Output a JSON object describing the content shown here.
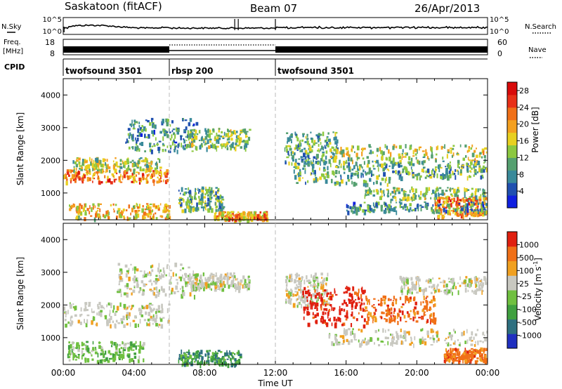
{
  "header": {
    "station": "Saskatoon (fitACF)",
    "beam": "Beam 07",
    "date": "26/Apr/2013"
  },
  "side_labels": {
    "nsky": "N.Sky",
    "freq_line1": "Freq.",
    "freq_line2": "[MHz]",
    "cpid": "CPID",
    "nsearch": "N.Search",
    "nave": "Nave"
  },
  "noise_panel": {
    "left_ticks": [
      "10^5",
      "10^0"
    ],
    "right_ticks": [
      "10^5",
      "10^0"
    ]
  },
  "freq_panel": {
    "left_ticks": [
      "18",
      "8"
    ],
    "right_ticks": [
      "60",
      "0"
    ],
    "freq_mhz": 11.0,
    "nave_dotted_interval": [
      "06:00",
      "12:00"
    ]
  },
  "cpid_segments": [
    {
      "label": "twofsound 3501",
      "start_hour": 0,
      "end_hour": 6
    },
    {
      "label": "rbsp 200",
      "start_hour": 6,
      "end_hour": 12
    },
    {
      "label": "twofsound 3501",
      "start_hour": 12,
      "end_hour": 24
    }
  ],
  "x_axis": {
    "label": "Time UT",
    "ticks": [
      "00:00",
      "04:00",
      "08:00",
      "12:00",
      "16:00",
      "20:00",
      "00:00"
    ]
  },
  "chart_data": [
    {
      "type": "heatmap",
      "name": "power",
      "ylabel": "Slant Range [km]",
      "y_ticks": [
        "1000",
        "2000",
        "3000",
        "4000"
      ],
      "ylim": [
        180,
        4500
      ],
      "xlim_hours": [
        0,
        24
      ],
      "colorbar": {
        "label": "Power [dB]",
        "ticks": [
          "4",
          "8",
          "12",
          "16",
          "20",
          "24",
          "28"
        ],
        "range": [
          0,
          30
        ],
        "colors": [
          "#1020e0",
          "#2050b0",
          "#3a8a9a",
          "#55a070",
          "#8cc840",
          "#e8d020",
          "#f4a020",
          "#f07018",
          "#e83018",
          "#d80a0a"
        ]
      },
      "bands": [
        {
          "t": [
            0.0,
            6.0
          ],
          "r": [
            1350,
            1750
          ],
          "level": 22
        },
        {
          "t": [
            0.5,
            5.5
          ],
          "r": [
            1700,
            2100
          ],
          "level": 14
        },
        {
          "t": [
            0.3,
            6.0
          ],
          "r": [
            250,
            700
          ],
          "level": 18
        },
        {
          "t": [
            3.5,
            7.5
          ],
          "r": [
            2300,
            3300
          ],
          "level": 8
        },
        {
          "t": [
            7.0,
            10.5
          ],
          "r": [
            2400,
            3000
          ],
          "level": 12
        },
        {
          "t": [
            6.5,
            9.0
          ],
          "r": [
            500,
            1200
          ],
          "level": 10
        },
        {
          "t": [
            8.5,
            11.5
          ],
          "r": [
            220,
            450
          ],
          "level": 20
        },
        {
          "t": [
            12.5,
            15.5
          ],
          "r": [
            1900,
            2900
          ],
          "level": 10
        },
        {
          "t": [
            13.0,
            18.5
          ],
          "r": [
            1300,
            2000
          ],
          "level": 10
        },
        {
          "t": [
            15.0,
            24.0
          ],
          "r": [
            2000,
            2500
          ],
          "level": 15
        },
        {
          "t": [
            18.5,
            24.0
          ],
          "r": [
            1500,
            2000
          ],
          "level": 10
        },
        {
          "t": [
            17.0,
            24.0
          ],
          "r": [
            800,
            1200
          ],
          "level": 12
        },
        {
          "t": [
            21.0,
            24.0
          ],
          "r": [
            300,
            900
          ],
          "level": 22
        },
        {
          "t": [
            16.0,
            24.0
          ],
          "r": [
            450,
            750
          ],
          "level": 8
        }
      ]
    },
    {
      "type": "heatmap",
      "name": "velocity",
      "ylabel": "Slant Range [km]",
      "y_ticks": [
        "1000",
        "2000",
        "3000",
        "4000"
      ],
      "ylim": [
        180,
        4500
      ],
      "xlim_hours": [
        0,
        24
      ],
      "colorbar": {
        "label": "Velocity [m s-1]",
        "ticks": [
          "1000",
          "500",
          "100",
          "25",
          "-25",
          "-100",
          "-500",
          "-1000"
        ],
        "colors": [
          "#2030c0",
          "#2e7080",
          "#40a040",
          "#70c040",
          "#c8c8c0",
          "#f0a020",
          "#f07018",
          "#e02010"
        ]
      },
      "bands": [
        {
          "t": [
            0.0,
            6.0
          ],
          "r": [
            1400,
            2100
          ],
          "vclass": 4
        },
        {
          "t": [
            0.2,
            4.5
          ],
          "r": [
            300,
            900
          ],
          "vclass": 3
        },
        {
          "t": [
            3.0,
            7.5
          ],
          "r": [
            2300,
            3300
          ],
          "vclass": 4
        },
        {
          "t": [
            7.0,
            10.5
          ],
          "r": [
            2500,
            3000
          ],
          "vclass": 4
        },
        {
          "t": [
            6.5,
            10.0
          ],
          "r": [
            200,
            650
          ],
          "vclass": 2
        },
        {
          "t": [
            12.5,
            15.0
          ],
          "r": [
            2000,
            3000
          ],
          "vclass": 4
        },
        {
          "t": [
            13.5,
            17.0
          ],
          "r": [
            1400,
            2600
          ],
          "vclass": 7
        },
        {
          "t": [
            17.0,
            21.0
          ],
          "r": [
            1500,
            2300
          ],
          "vclass": 6
        },
        {
          "t": [
            19.0,
            24.0
          ],
          "r": [
            2400,
            2900
          ],
          "vclass": 4
        },
        {
          "t": [
            15.0,
            24.0
          ],
          "r": [
            800,
            1300
          ],
          "vclass": 4
        },
        {
          "t": [
            21.5,
            24.0
          ],
          "r": [
            300,
            700
          ],
          "vclass": 6
        }
      ]
    }
  ]
}
